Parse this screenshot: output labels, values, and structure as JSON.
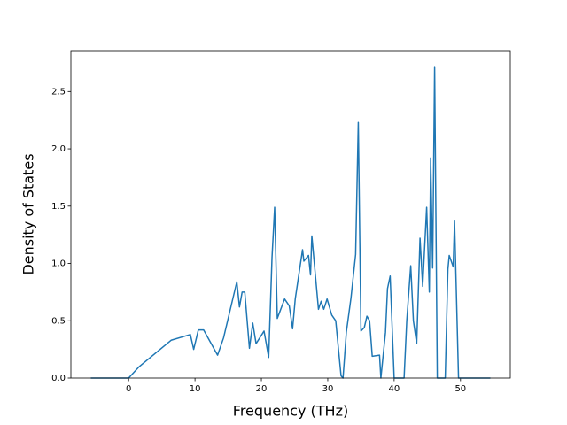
{
  "chart_data": {
    "type": "line",
    "x_label": "Frequency (THz)",
    "y_label": "Density of States",
    "x": [
      -5.7,
      0,
      1.6,
      6.4,
      9.3,
      9.8,
      10.5,
      11.3,
      13.4,
      14.3,
      16.3,
      16.7,
      17.1,
      17.5,
      18.2,
      18.7,
      19.2,
      20.4,
      21.1,
      21.6,
      22.0,
      22.4,
      23.5,
      24.2,
      24.7,
      25.1,
      26.2,
      26.4,
      27.1,
      27.4,
      27.6,
      28.6,
      29.0,
      29.4,
      29.9,
      30.6,
      31.2,
      32.0,
      32.3,
      32.8,
      33.5,
      34.2,
      34.6,
      35.0,
      35.5,
      35.9,
      36.3,
      36.7,
      37.8,
      38.0,
      38.7,
      39.0,
      39.4,
      40.0,
      41.5,
      41.9,
      42.5,
      42.9,
      43.4,
      43.9,
      44.3,
      44.9,
      45.3,
      45.5,
      45.8,
      46.1,
      46.5,
      47.7,
      48.1,
      48.3,
      48.9,
      49.1,
      49.7,
      54.5
    ],
    "series": [
      {
        "color": "#1f77b4",
        "values": [
          0,
          0,
          0.1,
          0.33,
          0.38,
          0.25,
          0.42,
          0.42,
          0.2,
          0.35,
          0.84,
          0.62,
          0.75,
          0.75,
          0.26,
          0.48,
          0.3,
          0.41,
          0.18,
          1.05,
          1.49,
          0.52,
          0.69,
          0.63,
          0.43,
          0.69,
          1.12,
          1.02,
          1.07,
          0.9,
          1.24,
          0.6,
          0.67,
          0.6,
          0.69,
          0.55,
          0.5,
          0.02,
          0,
          0.4,
          0.7,
          1.08,
          2.23,
          0.41,
          0.44,
          0.54,
          0.5,
          0.19,
          0.2,
          0,
          0.4,
          0.78,
          0.89,
          0,
          0,
          0.5,
          0.98,
          0.5,
          0.3,
          1.22,
          0.8,
          1.49,
          0.75,
          1.92,
          0.96,
          2.71,
          0,
          0,
          0.95,
          1.07,
          0.97,
          1.37,
          0,
          0
        ]
      }
    ],
    "xlim": [
      -8.7,
      57.5
    ],
    "xticks": [
      0,
      10,
      20,
      30,
      40,
      50
    ],
    "ylim": [
      0,
      2.85
    ],
    "yticks": [
      {
        "value": 0,
        "label": "0.0"
      },
      0.5,
      {
        "value": 1,
        "label": "1.0"
      },
      1.5,
      {
        "value": 2,
        "label": "2.0"
      },
      2.5
    ],
    "grid": false
  }
}
